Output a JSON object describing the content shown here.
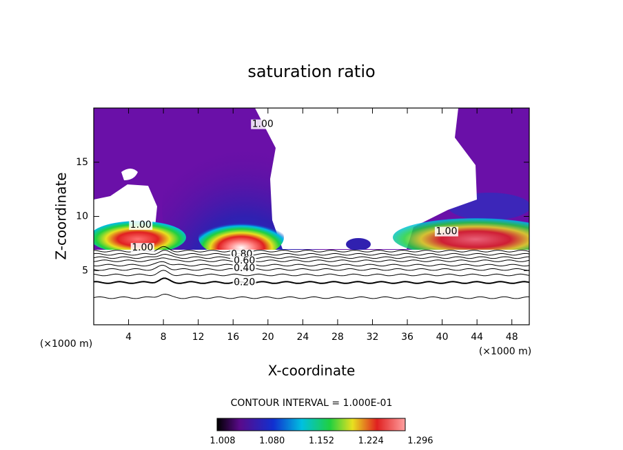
{
  "chart_data": {
    "type": "contour",
    "title": "saturation ratio",
    "xlabel": "X-coordinate",
    "ylabel": "Z-coordinate",
    "x_unit_left": "(×1000 m)",
    "x_unit_right": "(×1000 m)",
    "xlim": [
      0,
      50
    ],
    "ylim": [
      0,
      20
    ],
    "xticks": [
      4,
      8,
      12,
      16,
      20,
      24,
      28,
      32,
      36,
      40,
      44,
      48
    ],
    "yticks": [
      5,
      10,
      15
    ],
    "contours": {
      "levels": [
        0.1,
        0.2,
        0.3,
        0.4,
        0.5,
        0.6,
        0.7,
        0.8,
        0.9
      ],
      "heights": [
        2.5,
        3.9,
        4.6,
        5.1,
        5.5,
        5.9,
        6.2,
        6.5,
        6.8
      ]
    },
    "contour_labels": [
      {
        "value": 1,
        "label": "1.00",
        "x": 19.4,
        "z": 18.5
      },
      {
        "value": 1,
        "label": "1.00",
        "x": 5.4,
        "z": 9.2
      },
      {
        "value": 1,
        "label": "1.00",
        "x": 5.6,
        "z": 7.1
      },
      {
        "value": 1,
        "label": "1.00",
        "x": 40.5,
        "z": 8.6
      },
      {
        "value": 0.8,
        "label": "0.80",
        "x": 17.0,
        "z": 6.5
      },
      {
        "value": 0.6,
        "label": "0.60",
        "x": 17.3,
        "z": 5.9
      },
      {
        "value": 0.4,
        "label": "0.40",
        "x": 17.3,
        "z": 5.2
      },
      {
        "value": 0.2,
        "label": "0.20",
        "x": 17.3,
        "z": 3.9
      }
    ],
    "contour_interval": "CONTOUR INTERVAL = 1.000E-01",
    "colorbar_lim": [
      1.0,
      1.274
    ],
    "colorbar_ticks": [
      {
        "value": 1.008,
        "label": "1.008"
      },
      {
        "value": 1.08,
        "label": "1.080"
      },
      {
        "value": 1.152,
        "label": "1.152"
      },
      {
        "value": 1.224,
        "label": "1.224"
      },
      {
        "value": 1.296,
        "label": "1.296"
      }
    ]
  }
}
